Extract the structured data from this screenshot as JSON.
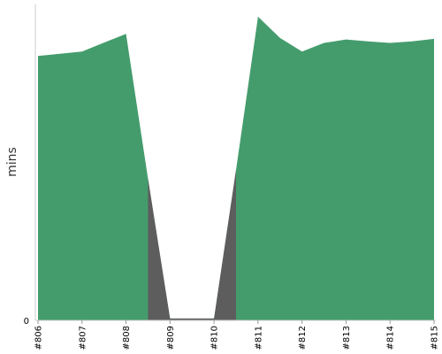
{
  "chart_data": {
    "type": "area",
    "title": "",
    "xlabel": "",
    "ylabel": "mins",
    "categories": [
      "#806",
      "#807",
      "#808",
      "#809",
      "#810",
      "#811",
      "#812",
      "#813",
      "#814",
      "#815"
    ],
    "y_tick_labels": [
      "0"
    ],
    "ylim": [
      0,
      100
    ],
    "grid": false,
    "legend": "none",
    "series": [
      {
        "x": [
          "#806",
          "#807",
          "#808",
          "#808.5",
          "#809",
          "#810",
          "#810.5",
          "#811",
          "#811.5",
          "#812",
          "#812.5",
          "#813",
          "#813.5",
          "#814",
          "#814.5",
          "#815"
        ],
        "values": [
          83.7,
          85.1,
          90.7,
          44.8,
          0.6,
          0.6,
          47.6,
          96.1,
          89.4,
          85.1,
          87.8,
          88.9,
          88.3,
          87.8,
          88.3,
          89.1
        ],
        "color": "#449c6c"
      },
      {
        "x": [
          "#808.5",
          "#809",
          "#810",
          "#810.5"
        ],
        "values": [
          44.8,
          0.6,
          0.6,
          47.6
        ],
        "color": "#5d5d5d"
      }
    ]
  }
}
